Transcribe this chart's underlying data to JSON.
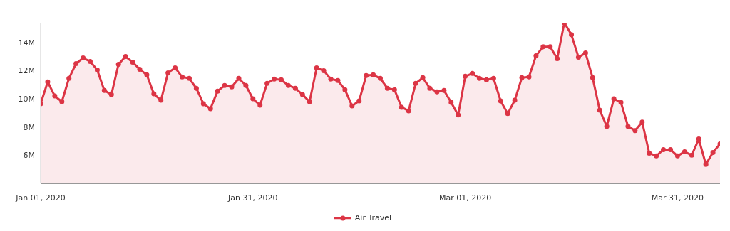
{
  "chart_data": {
    "type": "area",
    "x": [
      "2020-01-01",
      "2020-01-02",
      "2020-01-03",
      "2020-01-04",
      "2020-01-05",
      "2020-01-06",
      "2020-01-07",
      "2020-01-08",
      "2020-01-09",
      "2020-01-10",
      "2020-01-11",
      "2020-01-12",
      "2020-01-13",
      "2020-01-14",
      "2020-01-15",
      "2020-01-16",
      "2020-01-17",
      "2020-01-18",
      "2020-01-19",
      "2020-01-20",
      "2020-01-21",
      "2020-01-22",
      "2020-01-23",
      "2020-01-24",
      "2020-01-25",
      "2020-01-26",
      "2020-01-27",
      "2020-01-28",
      "2020-01-29",
      "2020-01-30",
      "2020-01-31",
      "2020-02-01",
      "2020-02-02",
      "2020-02-03",
      "2020-02-04",
      "2020-02-05",
      "2020-02-06",
      "2020-02-07",
      "2020-02-08",
      "2020-02-09",
      "2020-02-10",
      "2020-02-11",
      "2020-02-12",
      "2020-02-13",
      "2020-02-14",
      "2020-02-15",
      "2020-02-16",
      "2020-02-17",
      "2020-02-18",
      "2020-02-19",
      "2020-02-20",
      "2020-02-21",
      "2020-02-22",
      "2020-02-23",
      "2020-02-24",
      "2020-02-25",
      "2020-02-26",
      "2020-02-27",
      "2020-02-28",
      "2020-02-29",
      "2020-03-01",
      "2020-03-02",
      "2020-03-03",
      "2020-03-04",
      "2020-03-05",
      "2020-03-06",
      "2020-03-07",
      "2020-03-08",
      "2020-03-09",
      "2020-03-10",
      "2020-03-11",
      "2020-03-12",
      "2020-03-13",
      "2020-03-14",
      "2020-03-15",
      "2020-03-16",
      "2020-03-17",
      "2020-03-18",
      "2020-03-19",
      "2020-03-20",
      "2020-03-21",
      "2020-03-22",
      "2020-03-23",
      "2020-03-24",
      "2020-03-25",
      "2020-03-26",
      "2020-03-27",
      "2020-03-28",
      "2020-03-29",
      "2020-03-30",
      "2020-03-31",
      "2020-04-01",
      "2020-04-02",
      "2020-04-03",
      "2020-04-04",
      "2020-04-05",
      "2020-04-06"
    ],
    "series": [
      {
        "name": "Air Travel",
        "color": "#dc3545",
        "values": [
          9.65,
          11.2,
          10.2,
          9.8,
          11.45,
          12.5,
          12.9,
          12.65,
          12.05,
          10.6,
          10.3,
          12.45,
          13.0,
          12.6,
          12.1,
          11.7,
          10.35,
          9.9,
          11.85,
          12.2,
          11.55,
          11.45,
          10.75,
          9.65,
          9.3,
          10.55,
          10.95,
          10.85,
          11.45,
          10.95,
          10.0,
          9.55,
          11.1,
          11.4,
          11.35,
          10.95,
          10.75,
          10.3,
          9.8,
          12.2,
          12.0,
          11.4,
          11.3,
          10.65,
          9.5,
          9.85,
          11.65,
          11.7,
          11.45,
          10.75,
          10.65,
          9.4,
          9.15,
          11.1,
          11.5,
          10.75,
          10.5,
          10.6,
          9.75,
          8.85,
          11.6,
          11.8,
          11.45,
          11.35,
          11.45,
          9.85,
          8.95,
          9.9,
          11.5,
          11.55,
          13.05,
          13.7,
          13.7,
          12.85,
          15.4,
          14.55,
          12.95,
          13.25,
          11.5,
          9.2,
          8.05,
          10.0,
          9.75,
          8.05,
          7.75,
          8.35,
          6.15,
          5.95,
          6.4,
          6.4,
          5.95,
          6.25,
          6.0,
          7.15,
          5.35,
          6.2,
          6.8
        ]
      }
    ],
    "xlim": [
      "2020-01-01",
      "2020-04-06"
    ],
    "xticks": [
      {
        "value": "2020-01-01",
        "label": "Jan 01, 2020"
      },
      {
        "value": "2020-01-31",
        "label": "Jan 31, 2020"
      },
      {
        "value": "2020-03-01",
        "label": "Mar 01, 2020"
      },
      {
        "value": "2020-03-31",
        "label": "Mar 31, 2020"
      }
    ],
    "yticks": [
      {
        "value": 6,
        "label": "6M"
      },
      {
        "value": 8,
        "label": "8M"
      },
      {
        "value": 10,
        "label": "10M"
      },
      {
        "value": 12,
        "label": "12M"
      },
      {
        "value": 14,
        "label": "14M"
      }
    ],
    "grid": false,
    "ylim": [
      4,
      15.4
    ],
    "legend": "bottom",
    "marker": "circle",
    "line_style": "solid"
  }
}
